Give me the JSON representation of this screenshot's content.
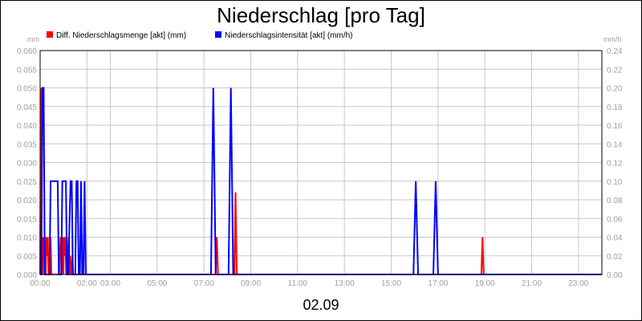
{
  "chart_data": {
    "type": "line",
    "title": "Niederschlag [pro Tag]",
    "date_label": "02.09",
    "y_left_unit": "mm",
    "y_right_unit": "mm/h",
    "y_left_range": [
      0,
      0.06
    ],
    "y_left_ticks": [
      "0.000",
      "0.005",
      "0.010",
      "0.015",
      "0.020",
      "0.025",
      "0.030",
      "0.035",
      "0.040",
      "0.045",
      "0.050",
      "0.055",
      "0.060"
    ],
    "y_right_range": [
      0,
      0.24
    ],
    "y_right_ticks": [
      "0.00",
      "0.02",
      "0.04",
      "0.06",
      "0.08",
      "0.10",
      "0.12",
      "0.14",
      "0.16",
      "0.18",
      "0.20",
      "0.22",
      "0.24"
    ],
    "x_range_hours": [
      0,
      24
    ],
    "x_ticks": [
      {
        "hour": 0,
        "label": "00:00"
      },
      {
        "hour": 2,
        "label": "02:00"
      },
      {
        "hour": 3,
        "label": "03:00"
      },
      {
        "hour": 5,
        "label": "05:00"
      },
      {
        "hour": 7,
        "label": "07:00"
      },
      {
        "hour": 9,
        "label": "09:00"
      },
      {
        "hour": 11,
        "label": "11:00"
      },
      {
        "hour": 13,
        "label": "13:00"
      },
      {
        "hour": 15,
        "label": "15:00"
      },
      {
        "hour": 17,
        "label": "17:00"
      },
      {
        "hour": 19,
        "label": "19:00"
      },
      {
        "hour": 21,
        "label": "21:00"
      },
      {
        "hour": 23,
        "label": "23:00"
      }
    ],
    "grid": true,
    "legend_position": "top-left",
    "series": [
      {
        "name": "Diff. Niederschlagsmenge [akt] (mm)",
        "axis": "left",
        "color": "#ff0000",
        "x": [
          0.0,
          0.03,
          0.06,
          0.09,
          0.12,
          0.15,
          0.18,
          0.21,
          0.24,
          0.27,
          0.3,
          0.33,
          0.36,
          0.39,
          0.42,
          0.45,
          0.48,
          0.51,
          0.54,
          0.57,
          0.6,
          0.63,
          0.66,
          0.69,
          0.72,
          0.75,
          0.78,
          0.81,
          0.84,
          0.87,
          0.9,
          0.93,
          0.96,
          0.99,
          1.02,
          1.05,
          1.08,
          1.11,
          1.14,
          1.17,
          1.2,
          1.23,
          1.26,
          1.29,
          1.32,
          1.35,
          1.38,
          1.41,
          1.44,
          1.47,
          1.5,
          1.53,
          1.56,
          1.59,
          1.62,
          1.65,
          1.68,
          1.71,
          1.74,
          1.77,
          1.8,
          1.83,
          1.86,
          1.89,
          1.92,
          1.95,
          1.98,
          2.01,
          2.04,
          7.45,
          7.5,
          7.55,
          7.6,
          7.65,
          8.25,
          8.3,
          8.35,
          8.4,
          8.45,
          18.8,
          18.85,
          18.9,
          18.95,
          19.0,
          24.0
        ],
        "values": [
          0.0,
          0.05,
          0.0,
          0.01,
          0.0,
          0.01,
          0.005,
          0.01,
          0.0,
          0.01,
          0.005,
          0.01,
          0.0,
          0.005,
          0.0,
          0.01,
          0.0,
          0.0,
          0.0,
          0.0,
          0.0,
          0.0,
          0.0,
          0.0,
          0.0,
          0.0,
          0.0,
          0.0,
          0.005,
          0.01,
          0.005,
          0.0,
          0.01,
          0.0,
          0.01,
          0.005,
          0.01,
          0.0,
          0.01,
          0.0,
          0.005,
          0.01,
          0.0,
          0.005,
          0.0,
          0.0,
          0.005,
          0.0,
          0.0,
          0.0,
          0.0,
          0.0,
          0.0,
          0.0,
          0.0,
          0.0,
          0.0,
          0.0,
          0.0,
          0.0,
          0.0,
          0.0,
          0.0,
          0.0,
          0.0,
          0.0,
          0.0,
          0.0,
          0.0,
          0.0,
          0.0,
          0.01,
          0.0,
          0.0,
          0.0,
          0.0,
          0.022,
          0.0,
          0.0,
          0.0,
          0.0,
          0.01,
          0.0,
          0.0,
          0.0
        ]
      },
      {
        "name": "Niederschlagsintensität [akt] (mm/h)",
        "axis": "right",
        "color": "#0000ff",
        "x": [
          0.0,
          0.05,
          0.1,
          0.15,
          0.2,
          0.4,
          0.45,
          0.5,
          0.7,
          0.75,
          0.8,
          0.9,
          0.95,
          1.0,
          1.1,
          1.15,
          1.2,
          1.3,
          1.35,
          1.4,
          1.5,
          1.55,
          1.6,
          1.65,
          1.7,
          1.75,
          1.8,
          1.85,
          1.9,
          1.95,
          2.0,
          2.05,
          7.3,
          7.4,
          7.5,
          7.6,
          8.05,
          8.15,
          8.25,
          8.35,
          15.95,
          16.05,
          16.15,
          16.8,
          16.9,
          17.0,
          24.0
        ],
        "values": [
          0.0,
          0.0,
          0.2,
          0.2,
          0.0,
          0.0,
          0.1,
          0.1,
          0.1,
          0.1,
          0.0,
          0.0,
          0.1,
          0.1,
          0.1,
          0.0,
          0.0,
          0.1,
          0.1,
          0.0,
          0.0,
          0.1,
          0.1,
          0.0,
          0.0,
          0.1,
          0.0,
          0.0,
          0.1,
          0.0,
          0.0,
          0.0,
          0.0,
          0.2,
          0.0,
          0.0,
          0.0,
          0.2,
          0.0,
          0.0,
          0.0,
          0.1,
          0.0,
          0.0,
          0.1,
          0.0,
          0.0
        ]
      }
    ]
  }
}
